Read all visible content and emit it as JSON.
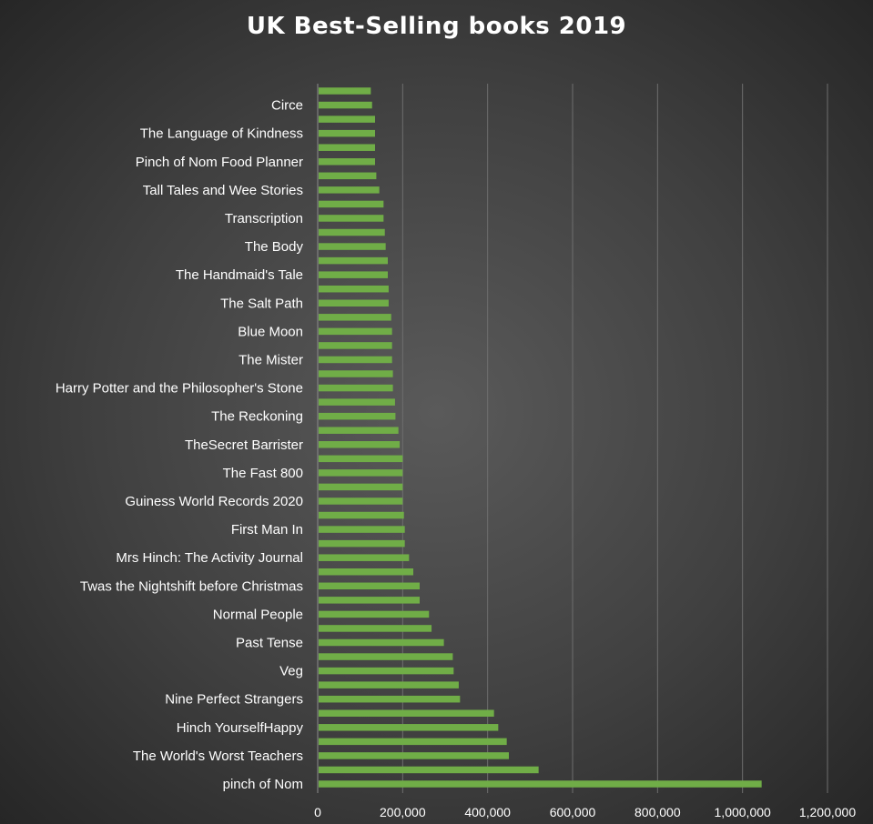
{
  "chart_data": {
    "type": "bar",
    "orientation": "horizontal",
    "title": "UK Best-Selling  books 2019",
    "xlabel": "",
    "ylabel": "",
    "xlim": [
      0,
      1200000
    ],
    "x_ticks": [
      0,
      200000,
      400000,
      600000,
      800000,
      1000000,
      1200000
    ],
    "x_tick_labels": [
      "0",
      "200,000",
      "400,000",
      "600,000",
      "800,000",
      "1,000,000",
      "1,200,000"
    ],
    "grid": "vertical",
    "legend": "none",
    "bar_color": "#70ad47",
    "categories": [
      "pinch of Nom",
      "",
      "The World's Worst Teachers",
      "",
      "Hinch YourselfHappy",
      "",
      "Nine Perfect Strangers",
      "",
      "Veg",
      "",
      "Past Tense",
      "",
      "Normal People",
      "",
      "Twas the Nightshift before Christmas",
      "",
      "Mrs Hinch: The Activity Journal",
      "",
      "First Man In",
      "",
      "Guiness World Records 2020",
      "",
      "The Fast 800",
      "",
      "TheSecret Barrister",
      "",
      "The Reckoning",
      "",
      "Harry Potter and the Philosopher's Stone",
      "",
      "The Mister",
      "",
      "Blue Moon",
      "",
      "The Salt Path",
      "",
      "The Handmaid's Tale",
      "",
      "The Body",
      "",
      "Transcription",
      "",
      "Tall Tales and Wee Stories",
      "",
      "Pinch of Nom Food Planner",
      "",
      "The Language of Kindness",
      "",
      "Circe",
      ""
    ],
    "values": [
      1045000,
      520000,
      450000,
      445000,
      425000,
      415000,
      335000,
      332000,
      320000,
      318000,
      297000,
      268000,
      262000,
      240000,
      240000,
      225000,
      215000,
      205000,
      205000,
      203000,
      200000,
      200000,
      200000,
      200000,
      193000,
      190000,
      183000,
      182000,
      177000,
      177000,
      175000,
      175000,
      175000,
      173000,
      167000,
      167000,
      165000,
      165000,
      160000,
      158000,
      155000,
      155000,
      145000,
      138000,
      135000,
      135000,
      135000,
      135000,
      128000,
      125000
    ]
  }
}
